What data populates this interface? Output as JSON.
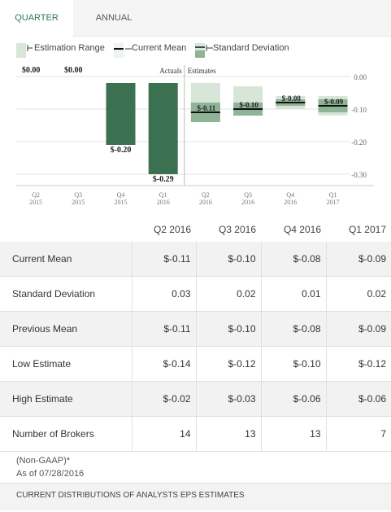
{
  "tabs": [
    {
      "label": "QUARTER",
      "active": true
    },
    {
      "label": "ANNUAL",
      "active": false
    }
  ],
  "legend": {
    "estimation_range": "Estimation Range",
    "current_mean": "Current Mean",
    "standard_deviation": "Standard Deviation"
  },
  "colors": {
    "accent_green": "#2f7a4f",
    "actual_bar": "#3b7050",
    "range_light": "#d8e6da",
    "stddev_mid": "#8fb396",
    "mean_line": "#111111"
  },
  "chart_data": {
    "type": "bar",
    "section_labels": {
      "actuals": "Actuals",
      "estimates": "Estimates"
    },
    "categories": [
      "Q2 2015",
      "Q3 2015",
      "Q4 2015",
      "Q1 2016",
      "Q2 2016",
      "Q3 2016",
      "Q4 2016",
      "Q1 2017"
    ],
    "actuals": [
      0.0,
      0.0,
      -0.2,
      -0.29,
      null,
      null,
      null,
      null
    ],
    "actual_labels": [
      "$0.00",
      "$0.00",
      "$-0.20",
      "$-0.29",
      "",
      "",
      "",
      ""
    ],
    "estimates": {
      "mean": [
        null,
        null,
        null,
        null,
        -0.11,
        -0.1,
        -0.08,
        -0.09
      ],
      "mean_labels": [
        "",
        "",
        "",
        "",
        "$-0.11",
        "$-0.10",
        "$-0.08",
        "$-0.09"
      ],
      "std_dev": [
        null,
        null,
        null,
        null,
        0.03,
        0.02,
        0.01,
        0.02
      ],
      "low": [
        null,
        null,
        null,
        null,
        -0.14,
        -0.12,
        -0.1,
        -0.12
      ],
      "high": [
        null,
        null,
        null,
        null,
        -0.02,
        -0.03,
        -0.06,
        -0.06
      ]
    },
    "y_ticks": [
      0.0,
      -0.1,
      -0.2,
      -0.3
    ],
    "y_tick_labels": [
      "0.00",
      "-0.10",
      "-0.20",
      "-0.30"
    ],
    "ylim": [
      -0.32,
      0.02
    ],
    "grid": true
  },
  "table": {
    "headers": [
      "",
      "Q2 2016",
      "Q3 2016",
      "Q4 2016",
      "Q1 2017"
    ],
    "rows": [
      {
        "label": "Current Mean",
        "values": [
          "$-0.11",
          "$-0.10",
          "$-0.08",
          "$-0.09"
        ]
      },
      {
        "label": "Standard Deviation",
        "values": [
          "0.03",
          "0.02",
          "0.01",
          "0.02"
        ]
      },
      {
        "label": "Previous Mean",
        "values": [
          "$-0.11",
          "$-0.10",
          "$-0.08",
          "$-0.09"
        ]
      },
      {
        "label": "Low Estimate",
        "values": [
          "$-0.14",
          "$-0.12",
          "$-0.10",
          "$-0.12"
        ]
      },
      {
        "label": "High Estimate",
        "values": [
          "$-0.02",
          "$-0.03",
          "$-0.06",
          "$-0.06"
        ]
      },
      {
        "label": "Number of Brokers",
        "values": [
          "14",
          "13",
          "13",
          "7"
        ]
      }
    ]
  },
  "notes": {
    "non_gaap": "(Non-GAAP)*",
    "as_of": "As of 07/28/2016"
  },
  "footer": {
    "section_title": "CURRENT DISTRIBUTIONS OF ANALYSTS EPS ESTIMATES"
  }
}
